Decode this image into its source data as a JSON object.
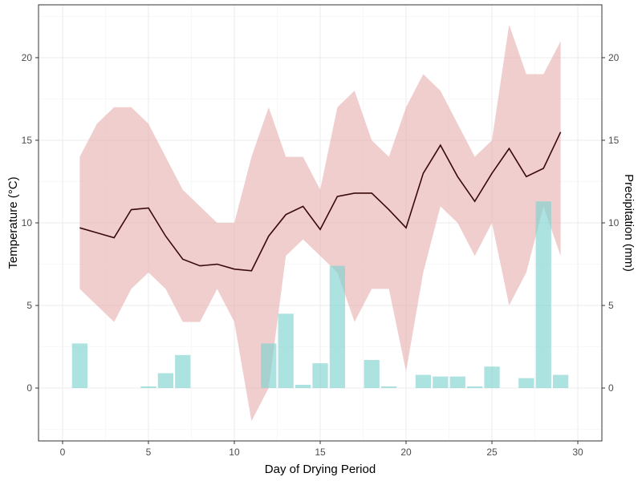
{
  "chart_data": {
    "type": "bar+line+area",
    "xlabel": "Day of Drying Period",
    "ylabel_left": "Temperature (°C)",
    "ylabel_right": "Precipitation (mm)",
    "xlim": [
      -1.4,
      31.4
    ],
    "ylim": [
      -3.2,
      23.2
    ],
    "x_ticks": [
      0,
      5,
      10,
      15,
      20,
      25,
      30
    ],
    "y_ticks_left": [
      0,
      5,
      10,
      15,
      20
    ],
    "y_ticks_right": [
      0,
      5,
      10,
      15,
      20
    ],
    "grid": true,
    "colors": {
      "band": "#e8b4b4",
      "line": "#3a0a0a",
      "bars": "#7fd3d0",
      "panel_border": "#333333"
    },
    "temperature_mean": {
      "x": [
        1,
        2,
        3,
        4,
        5,
        6,
        7,
        8,
        9,
        10,
        11,
        12,
        13,
        14,
        15,
        16,
        17,
        18,
        19,
        20,
        21,
        22,
        23,
        24,
        25,
        26,
        27,
        28,
        29
      ],
      "y": [
        9.7,
        9.4,
        9.1,
        10.8,
        10.9,
        9.2,
        7.8,
        7.4,
        7.5,
        7.2,
        7.1,
        9.2,
        10.5,
        11.0,
        9.6,
        11.6,
        11.8,
        11.8,
        10.8,
        9.7,
        13.0,
        14.7,
        12.8,
        11.3,
        13.0,
        14.5,
        12.8,
        13.3,
        15.5
      ]
    },
    "temperature_range": {
      "x": [
        1,
        2,
        3,
        4,
        5,
        6,
        7,
        8,
        9,
        10,
        11,
        12,
        13,
        14,
        15,
        16,
        17,
        18,
        19,
        20,
        21,
        22,
        23,
        24,
        25,
        26,
        27,
        28,
        29
      ],
      "ymin": [
        6,
        5,
        4,
        6,
        7,
        6,
        4,
        4,
        6,
        4,
        -2,
        0,
        8,
        9,
        8,
        7,
        4,
        6,
        6,
        1,
        7,
        11,
        10,
        8,
        10,
        5,
        7,
        11,
        8
      ],
      "ymax": [
        14,
        16,
        17,
        17,
        16,
        14,
        12,
        11,
        10,
        10,
        14,
        17,
        14,
        14,
        12,
        17,
        18,
        15,
        14,
        17,
        19,
        18,
        16,
        14,
        15,
        22,
        19,
        19,
        21
      ]
    },
    "precipitation": {
      "x": [
        1,
        5,
        6,
        7,
        12,
        13,
        14,
        15,
        16,
        18,
        19,
        21,
        22,
        23,
        24,
        25,
        27,
        28,
        29
      ],
      "y": [
        2.7,
        0.1,
        0.9,
        2.0,
        2.7,
        4.5,
        0.2,
        1.5,
        7.4,
        1.7,
        0.1,
        0.8,
        0.7,
        0.7,
        0.1,
        1.3,
        0.6,
        11.3,
        0.8
      ]
    }
  }
}
